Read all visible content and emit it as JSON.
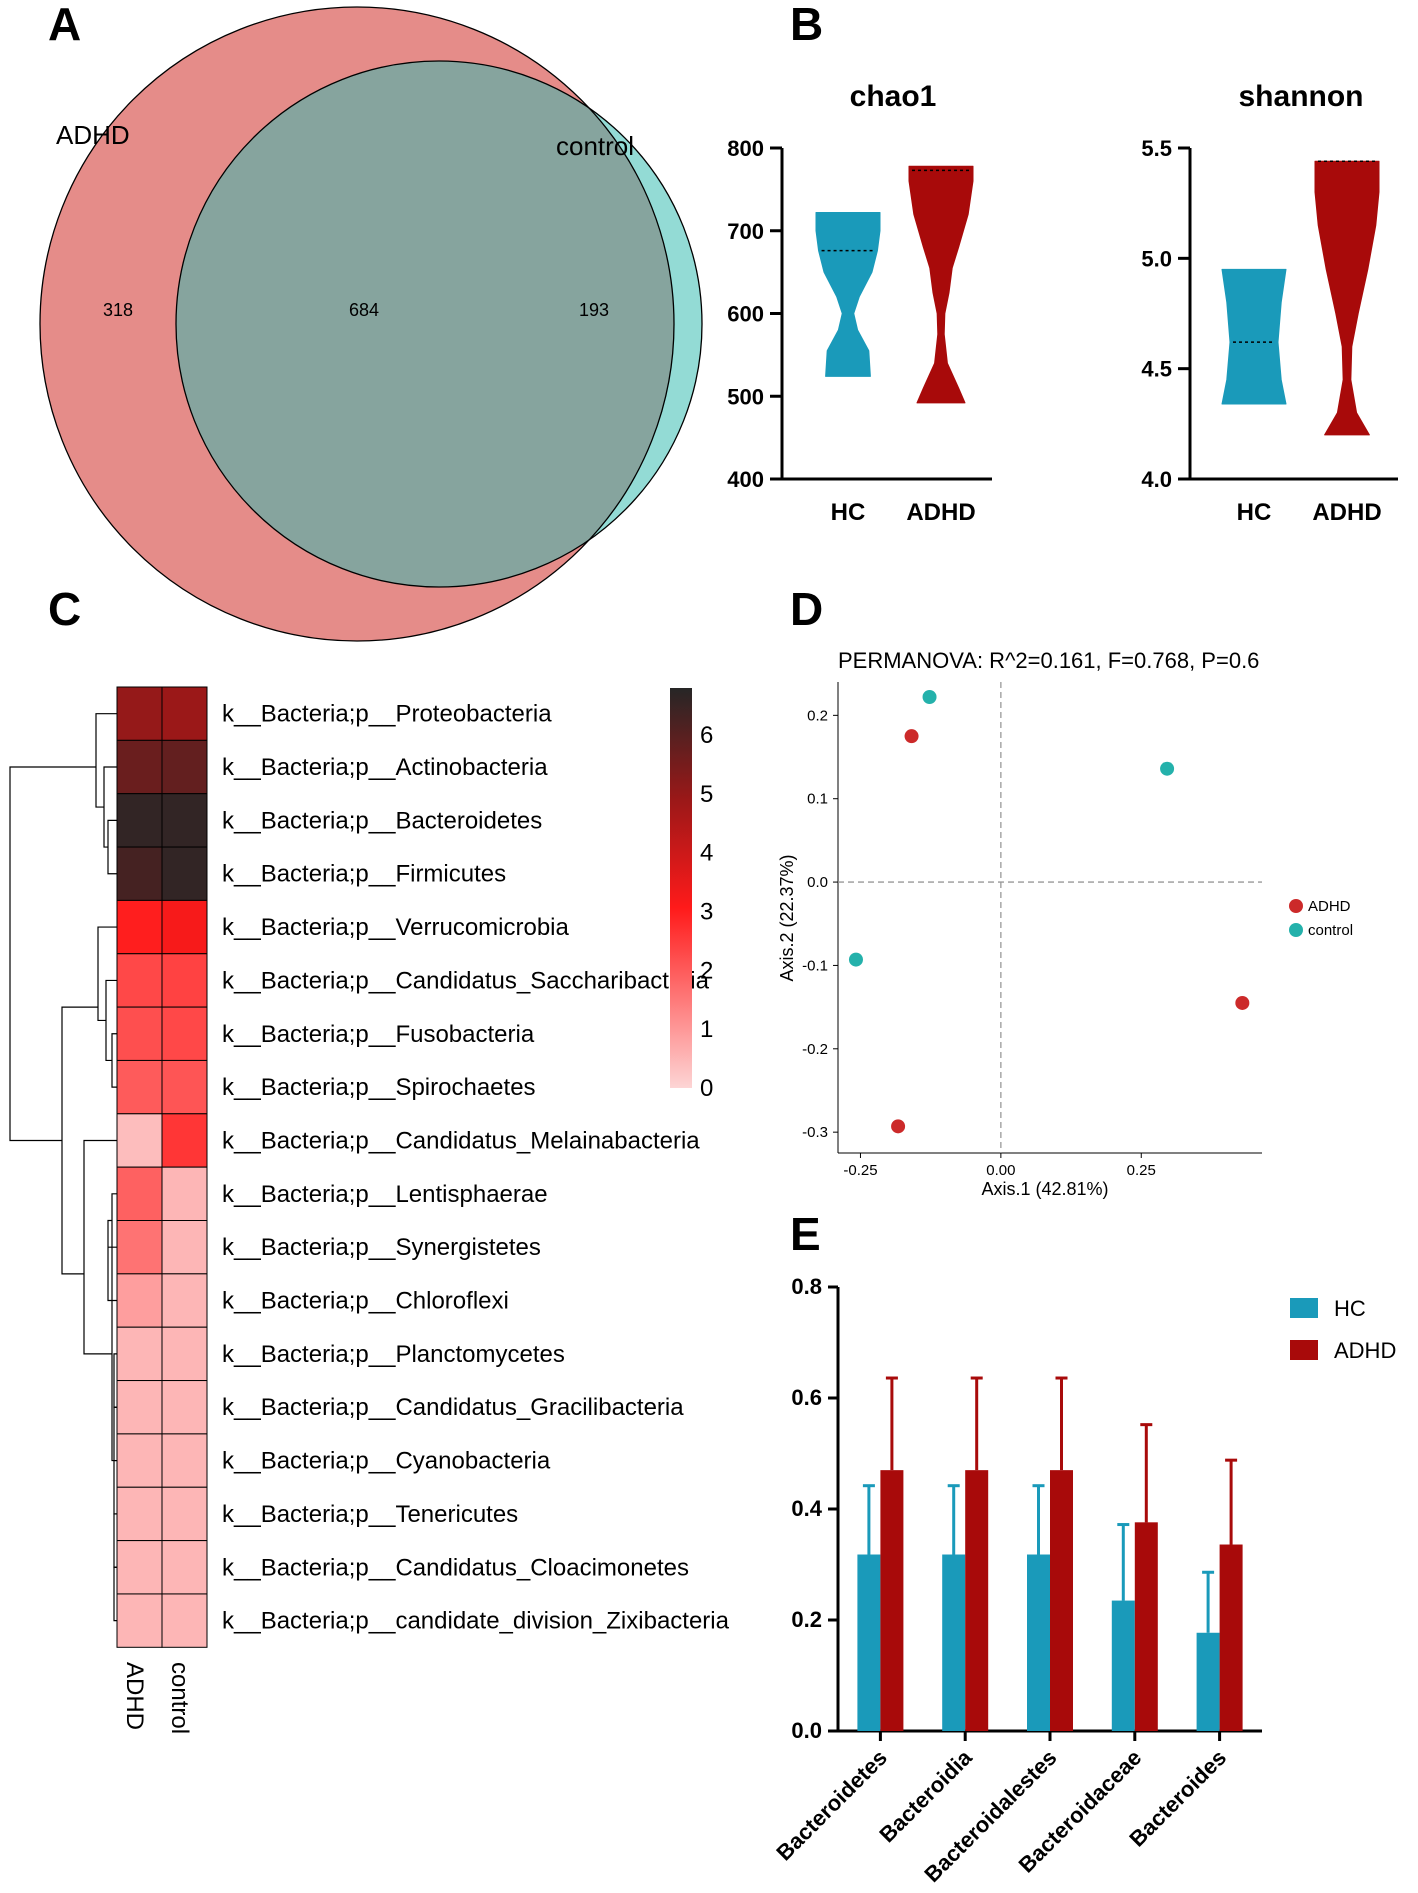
{
  "panels": {
    "a": "A",
    "b": "B",
    "c": "C",
    "d": "D",
    "e": "E"
  },
  "venn": {
    "left_label": "ADHD",
    "right_label": "control",
    "left_only": "318",
    "shared": "684",
    "right_only": "193",
    "left_color": "#e58c89",
    "right_color": "#93dbd5",
    "overlap_color": "#86a49e"
  },
  "chart_data": [
    {
      "id": "chao1",
      "type": "violin",
      "title": "chao1",
      "categories": [
        "HC",
        "ADHD"
      ],
      "ylim": [
        400,
        800
      ],
      "yticks": [
        400,
        500,
        600,
        700,
        800
      ],
      "series": [
        {
          "name": "HC",
          "color": "#1a9aba",
          "min": 524,
          "max": 722,
          "median": 676,
          "profile": [
            [
              524,
              0.7
            ],
            [
              555,
              0.65
            ],
            [
              580,
              0.3
            ],
            [
              600,
              0.18
            ],
            [
              620,
              0.35
            ],
            [
              650,
              0.75
            ],
            [
              676,
              0.92
            ],
            [
              700,
              1.0
            ],
            [
              722,
              1.0
            ]
          ]
        },
        {
          "name": "ADHD",
          "color": "#a80a0a",
          "min": 492,
          "max": 778,
          "median": 773,
          "profile": [
            [
              492,
              0.75
            ],
            [
              510,
              0.55
            ],
            [
              540,
              0.2
            ],
            [
              575,
              0.1
            ],
            [
              600,
              0.12
            ],
            [
              625,
              0.25
            ],
            [
              655,
              0.35
            ],
            [
              680,
              0.55
            ],
            [
              720,
              0.85
            ],
            [
              760,
              1.0
            ],
            [
              778,
              1.0
            ]
          ]
        }
      ]
    },
    {
      "id": "shannon",
      "type": "violin",
      "title": "shannon",
      "categories": [
        "HC",
        "ADHD"
      ],
      "ylim": [
        4.0,
        5.5
      ],
      "yticks": [
        "4.0",
        "4.5",
        "5.0",
        "5.5"
      ],
      "series": [
        {
          "name": "HC",
          "color": "#1a9aba",
          "min": 4.34,
          "max": 4.95,
          "median": 4.62,
          "profile": [
            [
              4.34,
              1.0
            ],
            [
              4.45,
              0.85
            ],
            [
              4.62,
              0.75
            ],
            [
              4.8,
              0.85
            ],
            [
              4.95,
              1.0
            ]
          ]
        },
        {
          "name": "ADHD",
          "color": "#a80a0a",
          "min": 4.2,
          "max": 5.44,
          "median": 5.44,
          "profile": [
            [
              4.2,
              0.7
            ],
            [
              4.3,
              0.3
            ],
            [
              4.45,
              0.12
            ],
            [
              4.6,
              0.15
            ],
            [
              4.75,
              0.35
            ],
            [
              4.95,
              0.65
            ],
            [
              5.15,
              0.9
            ],
            [
              5.3,
              1.0
            ],
            [
              5.44,
              1.0
            ]
          ]
        }
      ]
    },
    {
      "id": "heatmap",
      "type": "heatmap",
      "columns": [
        "ADHD",
        "control"
      ],
      "rows": [
        "k__Bacteria;p__Proteobacteria",
        "k__Bacteria;p__Actinobacteria",
        "k__Bacteria;p__Bacteroidetes",
        "k__Bacteria;p__Firmicutes",
        "k__Bacteria;p__Verrucomicrobia",
        "k__Bacteria;p__Candidatus_Saccharibacteria",
        "k__Bacteria;p__Fusobacteria",
        "k__Bacteria;p__Spirochaetes",
        "k__Bacteria;p__Candidatus_Melainabacteria",
        "k__Bacteria;p__Lentisphaerae",
        "k__Bacteria;p__Synergistetes",
        "k__Bacteria;p__Chloroflexi",
        "k__Bacteria;p__Planctomycetes",
        "k__Bacteria;p__Candidatus_Gracilibacteria",
        "k__Bacteria;p__Cyanobacteria",
        "k__Bacteria;p__Tenericutes",
        "k__Bacteria;p__Candidatus_Cloacimonetes",
        "k__Bacteria;p__candidate_division_Zixibacteria"
      ],
      "values": [
        [
          5.0,
          4.9
        ],
        [
          5.7,
          5.8
        ],
        [
          6.6,
          6.6
        ],
        [
          6.3,
          6.6
        ],
        [
          3.0,
          3.2
        ],
        [
          2.3,
          2.4
        ],
        [
          2.2,
          2.3
        ],
        [
          2.0,
          2.1
        ],
        [
          0.4,
          2.6
        ],
        [
          1.9,
          0.5
        ],
        [
          1.6,
          0.5
        ],
        [
          0.9,
          0.5
        ],
        [
          0.5,
          0.5
        ],
        [
          0.5,
          0.5
        ],
        [
          0.5,
          0.5
        ],
        [
          0.5,
          0.5
        ],
        [
          0.5,
          0.5
        ],
        [
          0.5,
          0.5
        ]
      ],
      "scale": {
        "min": 0,
        "max": 6.8,
        "ticks": [
          "0",
          "1",
          "2",
          "3",
          "4",
          "5",
          "6"
        ]
      }
    },
    {
      "id": "pcoa",
      "type": "scatter",
      "title": "PERMANOVA: R^2=0.161, F=0.768, P=0.6",
      "xlabel": "Axis.1 (42.81%)",
      "ylabel": "Axis.2 (22.37%)",
      "xlim": [
        -0.29,
        0.465
      ],
      "ylim": [
        -0.325,
        0.24
      ],
      "xticks": [
        "-0.25",
        "0.00",
        "0.25"
      ],
      "yticks": [
        "-0.3",
        "-0.2",
        "-0.1",
        "0.0",
        "0.1",
        "0.2"
      ],
      "series": [
        {
          "name": "ADHD",
          "color": "#cc2a2a",
          "points": [
            [
              -0.159,
              0.175
            ],
            [
              -0.183,
              -0.293
            ],
            [
              0.43,
              -0.145
            ]
          ]
        },
        {
          "name": "control",
          "color": "#24b1ab",
          "points": [
            [
              -0.127,
              0.222
            ],
            [
              0.296,
              0.136
            ],
            [
              -0.258,
              -0.093
            ]
          ]
        }
      ]
    },
    {
      "id": "bars",
      "type": "bar",
      "categories": [
        "Bacteroidetes",
        "Bacteroidia",
        "Bacteroidalestes",
        "Bacteroidaceae",
        "Bacteroides"
      ],
      "ylim": [
        0.0,
        0.8
      ],
      "yticks": [
        "0.0",
        "0.2",
        "0.4",
        "0.6",
        "0.8"
      ],
      "series": [
        {
          "name": "HC",
          "color": "#1a9aba",
          "values": [
            0.318,
            0.318,
            0.318,
            0.235,
            0.177
          ],
          "errors": [
            0.124,
            0.124,
            0.124,
            0.137,
            0.109
          ]
        },
        {
          "name": "ADHD",
          "color": "#a80a0a",
          "values": [
            0.47,
            0.47,
            0.47,
            0.376,
            0.336
          ],
          "errors": [
            0.166,
            0.166,
            0.166,
            0.176,
            0.152
          ]
        }
      ]
    }
  ]
}
